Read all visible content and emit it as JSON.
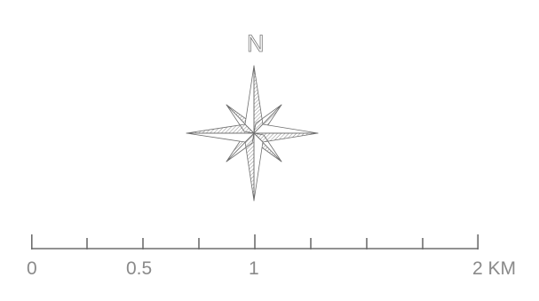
{
  "north_arrow": {
    "label": "N"
  },
  "scale_bar": {
    "labels": [
      "0",
      "0.5",
      "1",
      "2 KM"
    ],
    "unit": "KM",
    "max_value": 2
  },
  "colors": {
    "line": "#6e6e6e",
    "text": "#8a8a8a",
    "background": "#ffffff"
  }
}
